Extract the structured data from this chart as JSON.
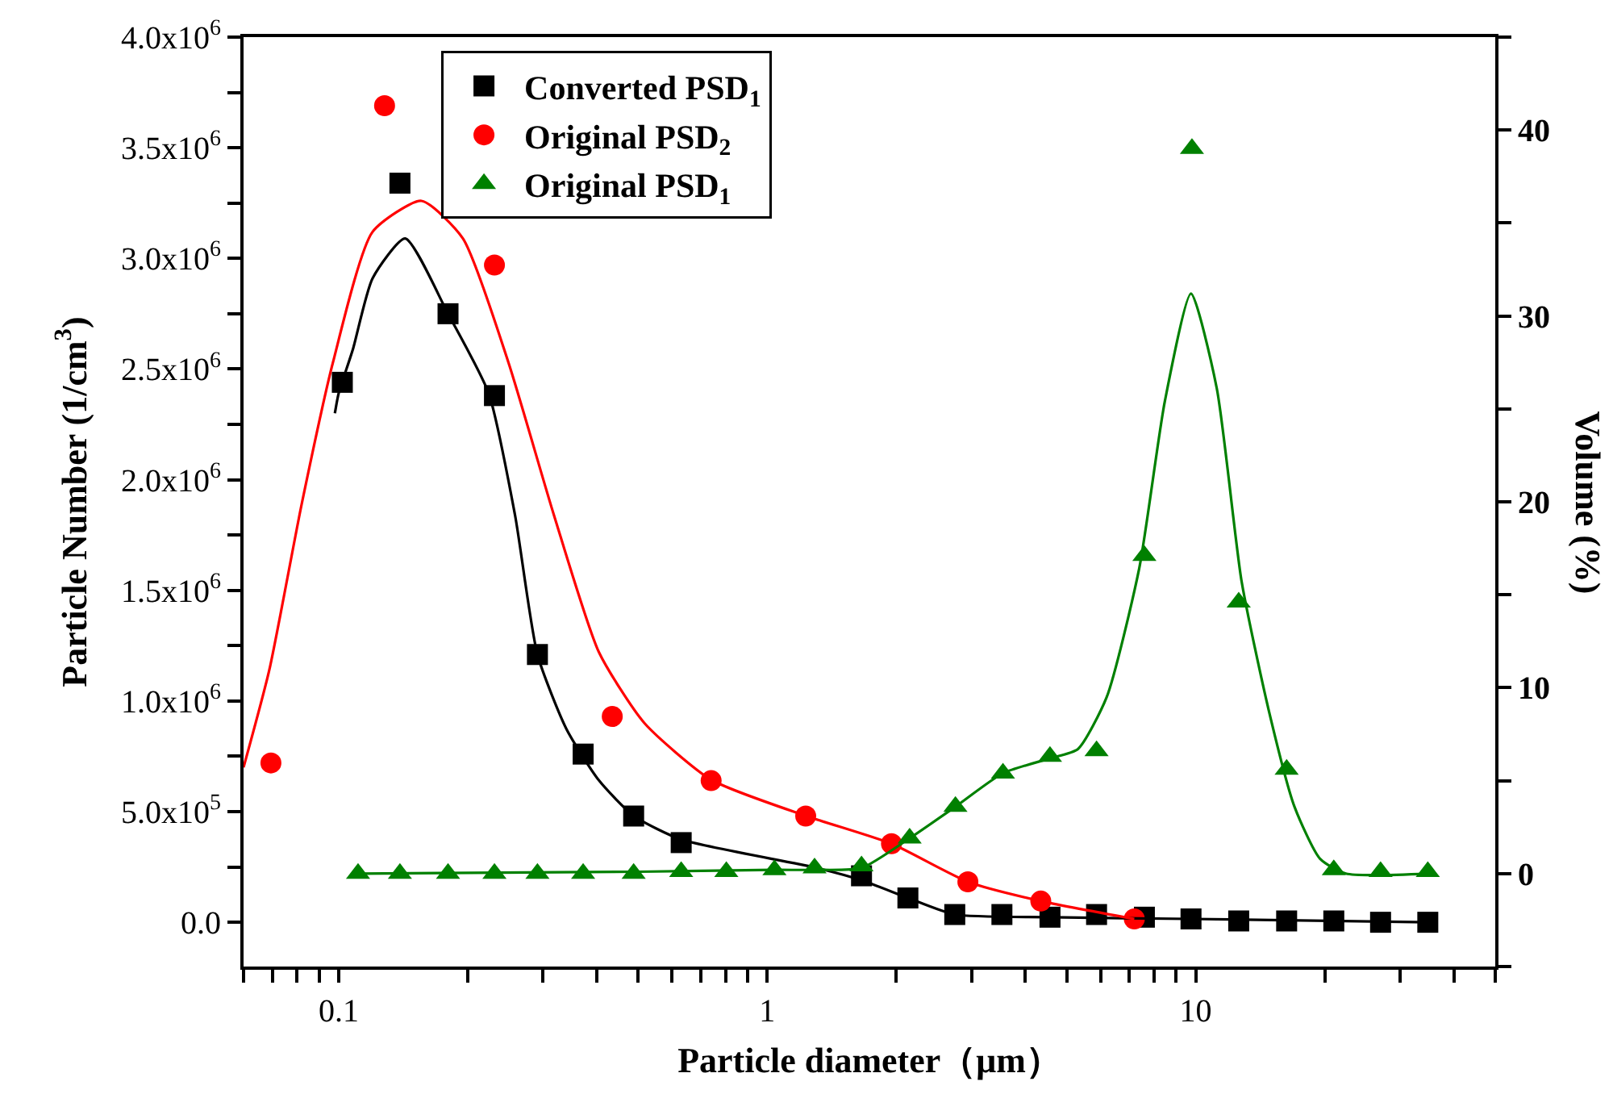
{
  "chart_data": {
    "type": "scatter",
    "xlabel": "Particle diameter（μm）",
    "ylabel": "Particle Number (1/cm$^{3}$)",
    "y2label": "Volume (%)",
    "log": "x",
    "legend": "top",
    "xlim": [
      0.06,
      50
    ],
    "xticks": [
      {
        "value": 0.06,
        "label": null
      },
      {
        "value": 0.07,
        "label": null
      },
      {
        "value": 0.08,
        "label": null
      },
      {
        "value": 0.09,
        "label": null
      },
      0.1,
      {
        "value": 0.2,
        "label": null
      },
      {
        "value": 0.3,
        "label": null
      },
      {
        "value": 0.4,
        "label": null
      },
      {
        "value": 0.5,
        "label": null
      },
      {
        "value": 0.6,
        "label": null
      },
      {
        "value": 0.7,
        "label": null
      },
      {
        "value": 0.8,
        "label": null
      },
      {
        "value": 0.9,
        "label": null
      },
      1,
      {
        "value": 2,
        "label": null
      },
      {
        "value": 3,
        "label": null
      },
      {
        "value": 4,
        "label": null
      },
      {
        "value": 5,
        "label": null
      },
      {
        "value": 6,
        "label": null
      },
      {
        "value": 7,
        "label": null
      },
      {
        "value": 8,
        "label": null
      },
      {
        "value": 9,
        "label": null
      },
      10,
      {
        "value": 20,
        "label": null
      },
      {
        "value": 30,
        "label": null
      },
      {
        "value": 40,
        "label": null
      },
      {
        "value": 50,
        "label": null
      }
    ],
    "ylim": [
      -200000,
      4000000
    ],
    "yticks": [
      {
        "value": 0,
        "label": "0.0"
      },
      {
        "value": 250000,
        "label": null
      },
      {
        "value": 500000,
        "label": "5.0x10$^{5}$"
      },
      {
        "value": 750000,
        "label": null
      },
      {
        "value": 1000000,
        "label": "1.0x10$^{6}$"
      },
      {
        "value": 1250000,
        "label": null
      },
      {
        "value": 1500000,
        "label": "1.5x10$^{6}$"
      },
      {
        "value": 1750000,
        "label": null
      },
      {
        "value": 2000000,
        "label": "2.0x10$^{6}$"
      },
      {
        "value": 2250000,
        "label": null
      },
      {
        "value": 2500000,
        "label": "2.5x10$^{6}$"
      },
      {
        "value": 2750000,
        "label": null
      },
      {
        "value": 3000000,
        "label": "3.0x10$^{6}$"
      },
      {
        "value": 3250000,
        "label": null
      },
      {
        "value": 3500000,
        "label": "3.5x10$^{6}$"
      },
      {
        "value": 3750000,
        "label": null
      },
      {
        "value": 4000000,
        "label": "4.0x10$^{6}$"
      }
    ],
    "y2lim": [
      -5,
      45
    ],
    "y2ticks": [
      {
        "value": -5,
        "label": null
      },
      0,
      {
        "value": 5,
        "label": null
      },
      10,
      {
        "value": 15,
        "label": null
      },
      20,
      {
        "value": 25,
        "label": null
      },
      30,
      {
        "value": 35,
        "label": null
      },
      40,
      {
        "value": 45,
        "label": null
      }
    ],
    "series": [
      {
        "name": "Converted PSD$_{1}$",
        "color": "#000000",
        "marker": "square",
        "x": [
          0.102,
          0.139,
          0.18,
          0.231,
          0.291,
          0.372,
          0.488,
          0.63,
          1.66,
          2.13,
          2.74,
          3.53,
          4.57,
          5.87,
          7.59,
          9.75,
          12.6,
          16.3,
          21.0,
          27.0,
          34.8
        ],
        "values": [
          2440000,
          3340000,
          2750000,
          2380000,
          1210000,
          760000,
          480000,
          360000,
          210000,
          110000,
          35000,
          35000,
          23000,
          35000,
          23000,
          15000,
          6000,
          6000,
          6000,
          0,
          0
        ]
      },
      {
        "name": "Original PSD$_{2}$",
        "color": "#ff0000",
        "marker": "circle",
        "x": [
          0.0695,
          0.128,
          0.231,
          0.435,
          0.74,
          1.23,
          1.95,
          2.94,
          4.35,
          7.19
        ],
        "values": [
          720000,
          3690000,
          2970000,
          930000,
          640000,
          480000,
          355000,
          183000,
          96000,
          15000
        ]
      },
      {
        "name": "Original PSD$_{1}$",
        "color": "#008000",
        "marker": "triangle",
        "axis": "y2",
        "x": [
          0.111,
          0.139,
          0.18,
          0.231,
          0.291,
          0.372,
          0.488,
          0.63,
          0.803,
          1.04,
          1.29,
          1.66,
          2.15,
          2.75,
          3.55,
          4.57,
          5.87,
          7.59,
          9.8,
          12.6,
          16.3,
          21.0,
          27.0,
          34.8
        ],
        "values": [
          0,
          0,
          0,
          0,
          0,
          0,
          0,
          0.1,
          0.1,
          0.2,
          0.3,
          0.4,
          1.9,
          3.6,
          5.4,
          6.3,
          6.6,
          17.1,
          39.0,
          14.6,
          5.6,
          0.2,
          0.1,
          0.1
        ]
      },
      {
        "type": "line",
        "color": "#000000",
        "marker": "none",
        "x": [
          0.098,
          0.1,
          0.108,
          0.12,
          0.143,
          0.18,
          0.224,
          0.258,
          0.291,
          0.34,
          0.405,
          0.488,
          0.63,
          1.29,
          1.66,
          2.13,
          2.74,
          4.57,
          9.75,
          34.8
        ],
        "values": [
          2300000,
          2390000,
          2590000,
          2910000,
          3090000,
          2750000,
          2390000,
          1840000,
          1210000,
          874000,
          641000,
          481000,
          374000,
          248000,
          190000,
          110000,
          35000,
          23000,
          15000,
          0
        ]
      },
      {
        "type": "line",
        "color": "#ff0000",
        "marker": "none",
        "x": [
          0.06,
          0.0689,
          0.082,
          0.097,
          0.12,
          0.156,
          0.195,
          0.249,
          0.318,
          0.405,
          0.517,
          0.74,
          1.23,
          1.95,
          2.94,
          4.35,
          7.19
        ],
        "values": [
          700000,
          1140000,
          1890000,
          2530000,
          3120000,
          3260000,
          3090000,
          2530000,
          1840000,
          1220000,
          900000,
          644000,
          481000,
          355000,
          183000,
          96000,
          15000
        ]
      },
      {
        "type": "line",
        "color": "#008000",
        "marker": "none",
        "axis": "y2",
        "x": [
          0.111,
          0.5,
          1.04,
          1.29,
          1.66,
          2.15,
          2.75,
          3.55,
          4.57,
          5.31,
          6.2,
          7.38,
          8.47,
          9.75,
          11.2,
          12.8,
          14.8,
          17.0,
          19.5,
          22.4,
          34.8
        ],
        "values": [
          0,
          0.1,
          0.2,
          0.2,
          0.3,
          1.9,
          3.6,
          5.4,
          6.2,
          6.7,
          9.5,
          16.4,
          25.4,
          31.2,
          26.1,
          15.7,
          8.8,
          3.6,
          0.8,
          0,
          0
        ]
      }
    ]
  }
}
